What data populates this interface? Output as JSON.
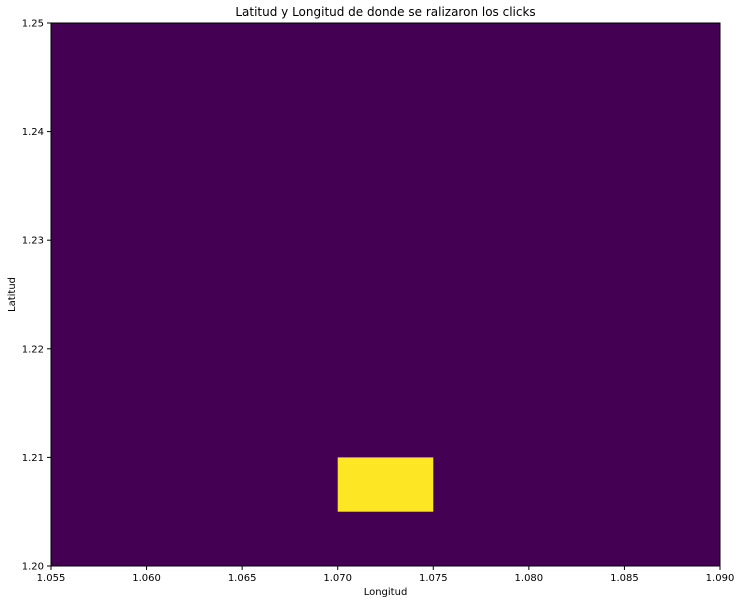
{
  "chart_data": {
    "type": "heatmap",
    "title": "Latitud y Longitud de donde se ralizaron los clicks",
    "xlabel": "Longitud",
    "ylabel": "Latitud",
    "xlim": [
      1.055,
      1.09
    ],
    "ylim": [
      1.2,
      1.25
    ],
    "x_ticks": [
      "1.055",
      "1.060",
      "1.065",
      "1.070",
      "1.075",
      "1.080",
      "1.085",
      "1.090"
    ],
    "y_ticks": [
      "1.20",
      "1.21",
      "1.22",
      "1.23",
      "1.24",
      "1.25"
    ],
    "grid": false,
    "background_color": "#440154",
    "cells": [
      {
        "x0": 1.07,
        "x1": 1.075,
        "y0": 1.205,
        "y1": 1.21,
        "color": "#fde725"
      }
    ]
  }
}
